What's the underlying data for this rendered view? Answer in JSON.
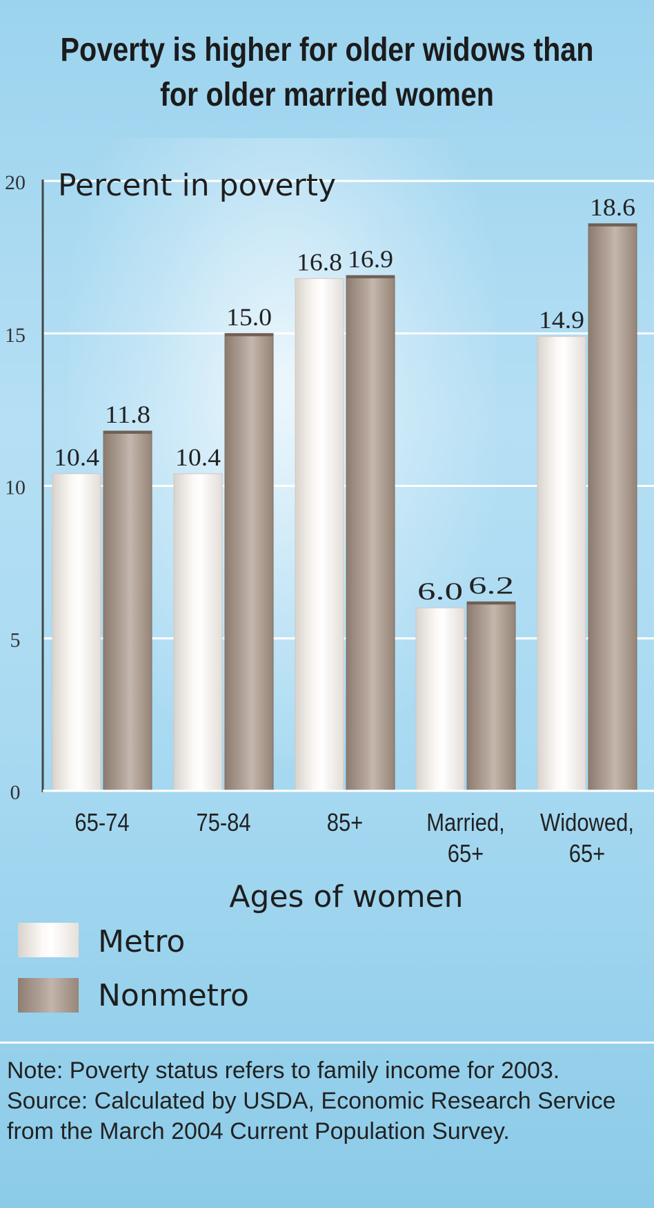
{
  "chart_data": {
    "type": "bar",
    "title": "Poverty is higher for older widows than for older married women",
    "ylabel": "Percent in poverty",
    "xlabel": "Ages of women",
    "ylim": [
      0,
      20
    ],
    "yticks": [
      "0",
      "5",
      "10",
      "15",
      "20"
    ],
    "categories": [
      [
        "65-74"
      ],
      [
        "75-84"
      ],
      [
        "85+"
      ],
      [
        "Married,",
        "65+"
      ],
      [
        "Widowed,",
        "65+"
      ]
    ],
    "series": [
      {
        "name": "Metro",
        "values": [
          10.4,
          10.4,
          16.8,
          6.0,
          14.9
        ],
        "labels": [
          "10.4",
          "10.4",
          "16.8",
          "6.0",
          "14.9"
        ]
      },
      {
        "name": "Nonmetro",
        "values": [
          11.8,
          15.0,
          16.9,
          6.2,
          18.6
        ],
        "labels": [
          "11.8",
          "15.0",
          "16.9",
          "6.2",
          "18.6"
        ]
      }
    ],
    "grid": true,
    "legend_position": "bottom-left"
  },
  "note": "Note: Poverty status refers to family income for 2003. Source: Calculated by USDA, Economic Research Service from the March 2004 Current Population Survey.",
  "colors": {
    "background": "#a9daf2",
    "metro": "#f6f2ee",
    "nonmetro": "#a89890",
    "title": "#1b1b1b"
  }
}
